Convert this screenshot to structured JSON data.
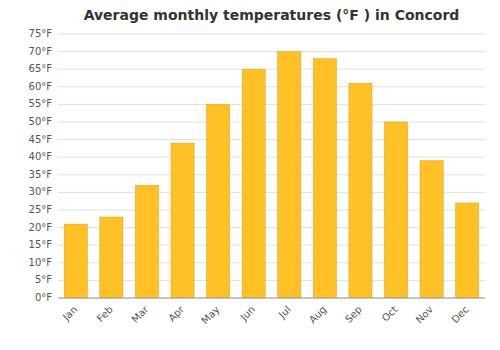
{
  "chart_data": {
    "type": "bar",
    "title": "Average monthly temperatures (°F ) in Concord",
    "categories": [
      "Jan",
      "Feb",
      "Mar",
      "Apr",
      "May",
      "Jun",
      "Jul",
      "Aug",
      "Sep",
      "Oct",
      "Nov",
      "Dec"
    ],
    "values": [
      21,
      23,
      32,
      44,
      55,
      65,
      70,
      68,
      61,
      50,
      39,
      27
    ],
    "color": "#FFC125",
    "ylim": [
      0,
      75
    ],
    "yticks": [
      {
        "value": 0,
        "label": "0°F"
      },
      {
        "value": 5,
        "label": "5°F"
      },
      {
        "value": 10,
        "label": "10°F"
      },
      {
        "value": 15,
        "label": "15°F"
      },
      {
        "value": 20,
        "label": "20°F"
      },
      {
        "value": 25,
        "label": "25°F"
      },
      {
        "value": 30,
        "label": "30°F"
      },
      {
        "value": 35,
        "label": "35°F"
      },
      {
        "value": 40,
        "label": "40°F"
      },
      {
        "value": 45,
        "label": "45°F"
      },
      {
        "value": 50,
        "label": "50°F"
      },
      {
        "value": 55,
        "label": "55°F"
      },
      {
        "value": 60,
        "label": "60°F"
      },
      {
        "value": 65,
        "label": "65°F"
      },
      {
        "value": 70,
        "label": "70°F"
      },
      {
        "value": 75,
        "label": "75°F"
      }
    ],
    "grid": true
  }
}
